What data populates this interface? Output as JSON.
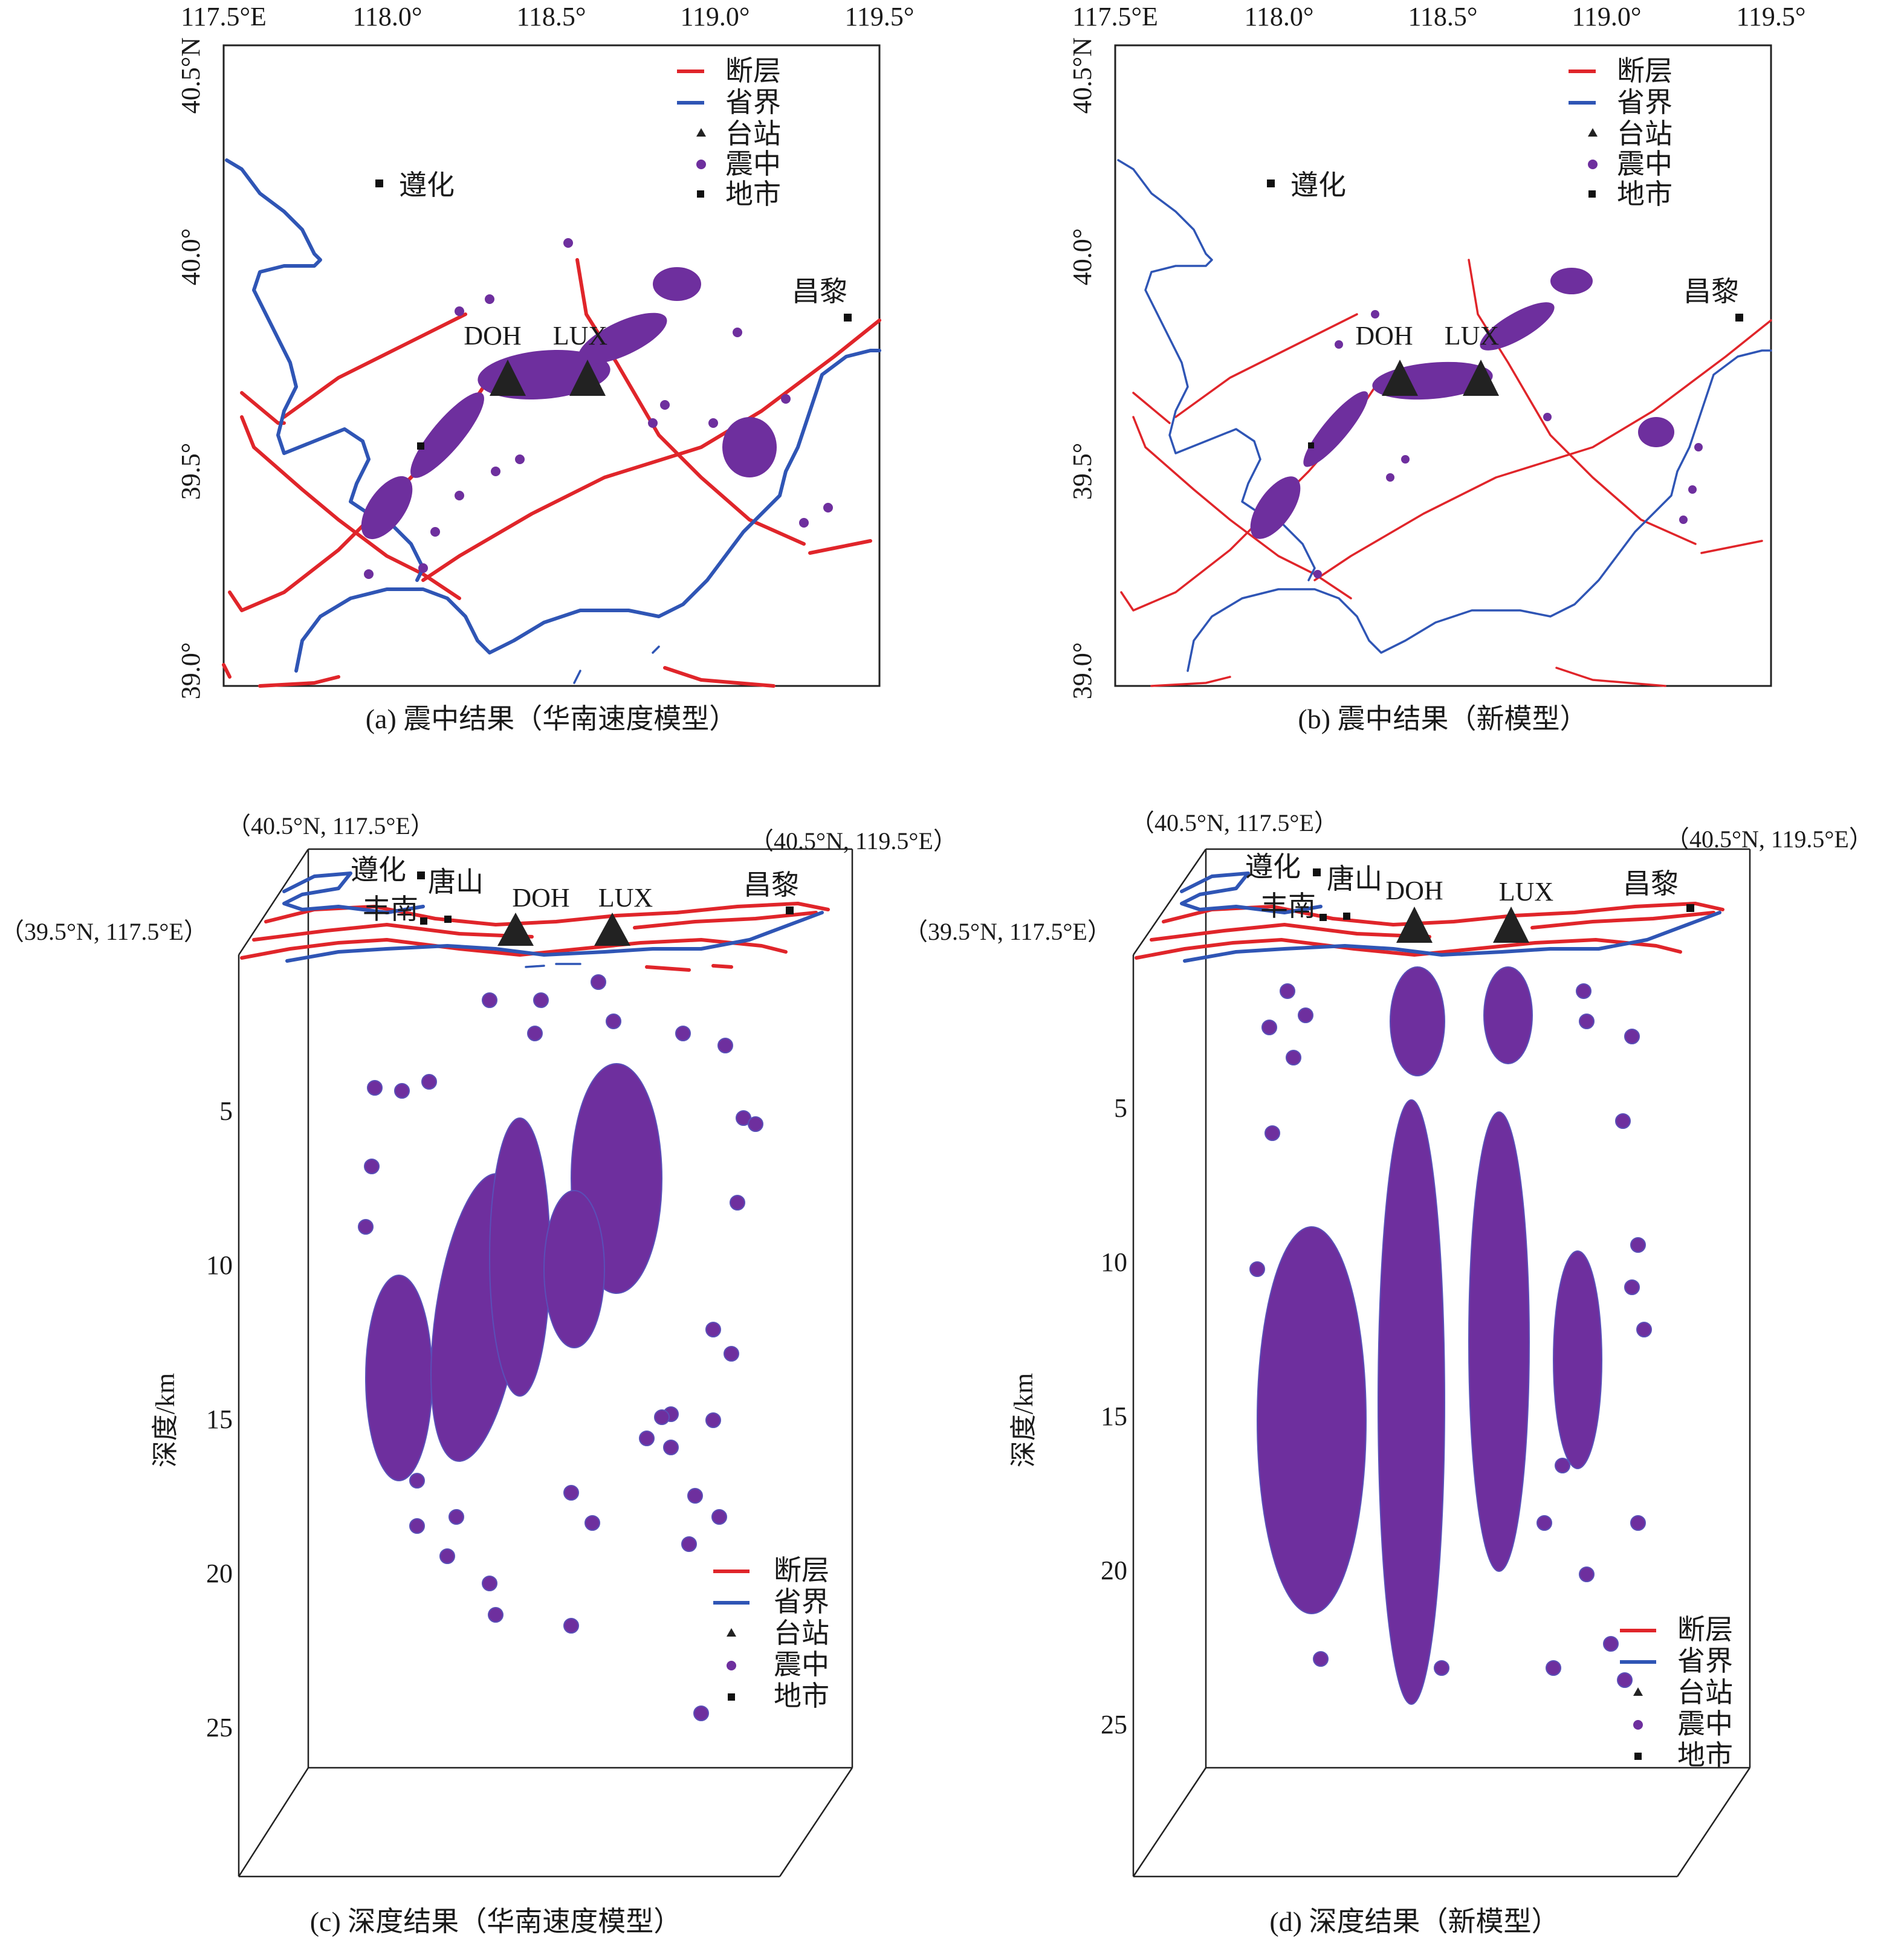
{
  "panels": {
    "a": {
      "caption": "(a) 震中结果（华南速度模型）",
      "x_ticks": [
        "117.5°E",
        "118.0°",
        "118.5°",
        "119.0°",
        "119.5°"
      ],
      "y_ticks": [
        "40.5°N",
        "40.0°",
        "39.5°",
        "39.0°"
      ],
      "legend": [
        "断层",
        "省界",
        "台站",
        "震中",
        "地市"
      ],
      "cities": [
        "遵化",
        "昌黎"
      ],
      "stations": [
        "DOH",
        "LUX"
      ]
    },
    "b": {
      "caption": "(b) 震中结果（新模型）",
      "x_ticks": [
        "117.5°E",
        "118.0°",
        "118.5°",
        "119.0°",
        "119.5°"
      ],
      "y_ticks": [
        "40.5°N",
        "40.0°",
        "39.5°",
        "39.0°"
      ],
      "legend": [
        "断层",
        "省界",
        "台站",
        "震中",
        "地市"
      ],
      "cities": [
        "遵化",
        "昌黎"
      ],
      "stations": [
        "DOH",
        "LUX"
      ]
    },
    "c": {
      "caption": "(c) 深度结果（华南速度模型）",
      "corner_labels": [
        "（40.5°N, 117.5°E）",
        "（40.5°N, 119.5°E）",
        "（39.5°N, 117.5°E）"
      ],
      "depth_ticks": [
        "5",
        "10",
        "15",
        "20",
        "25"
      ],
      "depth_title": "深度/km",
      "legend": [
        "断层",
        "省界",
        "台站",
        "震中",
        "地市"
      ],
      "cities": [
        "遵化",
        "唐山",
        "丰南",
        "昌黎"
      ],
      "stations": [
        "DOH",
        "LUX"
      ]
    },
    "d": {
      "caption": "(d) 深度结果（新模型）",
      "corner_labels": [
        "（40.5°N, 117.5°E）",
        "（40.5°N, 119.5°E）",
        "（39.5°N, 117.5°E）"
      ],
      "depth_ticks": [
        "5",
        "10",
        "15",
        "20",
        "25"
      ],
      "depth_title": "深度/km",
      "legend": [
        "断层",
        "省界",
        "台站",
        "震中",
        "地市"
      ],
      "cities": [
        "遵化",
        "唐山",
        "丰南",
        "昌黎"
      ],
      "stations": [
        "DOH",
        "LUX"
      ]
    }
  },
  "colors": {
    "fault": "#e0252a",
    "province_border": "#2f55b5",
    "epicenter": "#6e2f9e",
    "station": "#222222",
    "city": "#111111"
  },
  "icons": {
    "station": "triangle-icon",
    "epicenter": "circle-dot-icon",
    "city": "square-icon"
  }
}
